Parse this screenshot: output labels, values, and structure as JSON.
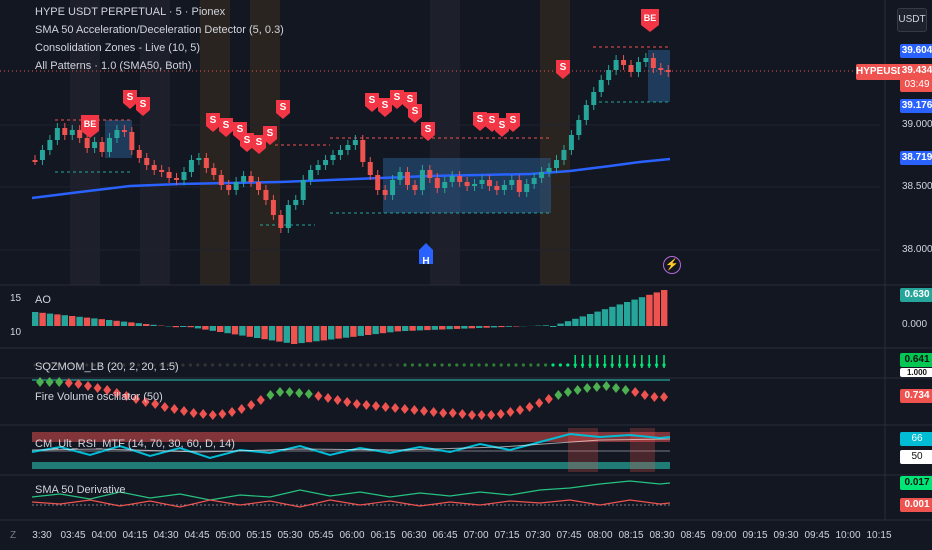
{
  "symbol_line": "HYPE USDT PERPETUAL · 5 · Pionex",
  "indicators": [
    "SMA 50 Acceleration/Deceleration Detector (5, 0.3)",
    "Consolidation Zones - Live (10, 5)",
    "All Patterns · 1.0 (SMA50, Both)"
  ],
  "currency_button": "USDT",
  "symbol_tag": "HYPEUSDT.P",
  "price_axis": {
    "high_tag": "39.604",
    "current_price": "39.434",
    "countdown": "03:49",
    "low_tag": "39.176",
    "sma_tag": "38.719",
    "ticks": [
      "39.000",
      "38.500",
      "38.000"
    ]
  },
  "panes": {
    "ao": {
      "label": "AO",
      "value_tag": "0.630",
      "zero_tick": "0.000",
      "left_ticks": [
        "15",
        "10"
      ]
    },
    "sqzmom": {
      "label": "SQZMOM_LB (20, 2, 20, 1.5)",
      "value_tag": "0.641",
      "sub_tag": "1.000"
    },
    "fire": {
      "label": "Fire Volume oscillator (50)",
      "value_tag": "0.734"
    },
    "rsi": {
      "label": "CM_Ult_RSI_MTF (14, 70, 30, 60, D, 14)",
      "value_tag_1": "66",
      "value_tag_2": "50"
    },
    "sma_deriv": {
      "label": "SMA 50 Derivative",
      "value_tag_1": "0.017",
      "value_tag_2": "0.001"
    }
  },
  "markers": {
    "sell_letter": "S",
    "breakeven_letter": "BE",
    "high_letter": "H",
    "flash_icon": "lightning-icon"
  },
  "time_axis": {
    "labels": [
      "3:30",
      "03:45",
      "04:00",
      "04:15",
      "04:30",
      "04:45",
      "05:00",
      "05:15",
      "05:30",
      "05:45",
      "06:00",
      "06:15",
      "06:30",
      "06:45",
      "07:00",
      "07:15",
      "07:30",
      "07:45",
      "08:00",
      "08:15",
      "08:30",
      "08:45",
      "09:00",
      "09:15",
      "09:30",
      "09:45",
      "10:00",
      "10:15"
    ]
  },
  "corner_label": "Z",
  "colors": {
    "up": "#26a69a",
    "down": "#ef5350",
    "sma": "#2962ff",
    "zone": "#2a5a8a",
    "bg": "#131722"
  }
}
